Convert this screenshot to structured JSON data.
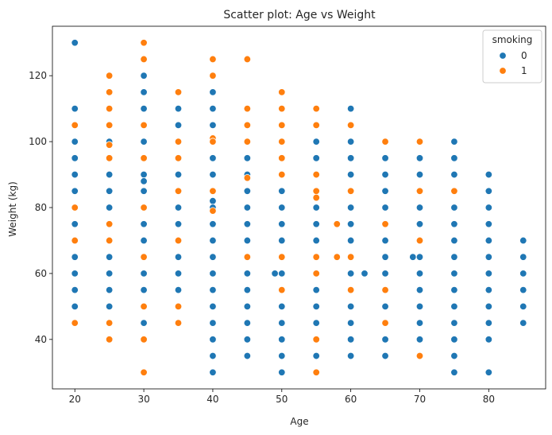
{
  "chart_data": {
    "type": "scatter",
    "title": "Scatter plot: Age vs Weight",
    "xlabel": "Age",
    "ylabel": "Weight (kg)",
    "xlim": [
      16.75,
      88.25
    ],
    "ylim": [
      25,
      135
    ],
    "xticks": [
      20,
      30,
      40,
      50,
      60,
      70,
      80
    ],
    "yticks": [
      40,
      60,
      80,
      100,
      120
    ],
    "grid": false,
    "legend": {
      "title": "smoking",
      "placement": "top-right",
      "entries": [
        "0",
        "1"
      ]
    },
    "colors": {
      "0": "#1f77b4",
      "1": "#ff7f0e"
    },
    "series": [
      {
        "name": "0",
        "points": [
          [
            20,
            130
          ],
          [
            20,
            110
          ],
          [
            20,
            100
          ],
          [
            20,
            95
          ],
          [
            20,
            90
          ],
          [
            20,
            85
          ],
          [
            20,
            75
          ],
          [
            20,
            65
          ],
          [
            20,
            60
          ],
          [
            20,
            55
          ],
          [
            20,
            50
          ],
          [
            25,
            100
          ],
          [
            25,
            90
          ],
          [
            25,
            85
          ],
          [
            25,
            80
          ],
          [
            25,
            65
          ],
          [
            25,
            60
          ],
          [
            25,
            55
          ],
          [
            25,
            50
          ],
          [
            30,
            120
          ],
          [
            30,
            115
          ],
          [
            30,
            110
          ],
          [
            30,
            100
          ],
          [
            30,
            90
          ],
          [
            30,
            88
          ],
          [
            30,
            85
          ],
          [
            30,
            75
          ],
          [
            30,
            70
          ],
          [
            30,
            60
          ],
          [
            30,
            55
          ],
          [
            30,
            45
          ],
          [
            35,
            110
          ],
          [
            35,
            105
          ],
          [
            35,
            90
          ],
          [
            35,
            80
          ],
          [
            35,
            75
          ],
          [
            35,
            65
          ],
          [
            35,
            60
          ],
          [
            35,
            55
          ],
          [
            35,
            50
          ],
          [
            40,
            115
          ],
          [
            40,
            110
          ],
          [
            40,
            105
          ],
          [
            40,
            100
          ],
          [
            40,
            95
          ],
          [
            40,
            90
          ],
          [
            40,
            82
          ],
          [
            40,
            80
          ],
          [
            40,
            75
          ],
          [
            40,
            70
          ],
          [
            40,
            65
          ],
          [
            40,
            60
          ],
          [
            40,
            55
          ],
          [
            40,
            50
          ],
          [
            40,
            45
          ],
          [
            40,
            40
          ],
          [
            40,
            35
          ],
          [
            40,
            30
          ],
          [
            45,
            95
          ],
          [
            45,
            90
          ],
          [
            45,
            85
          ],
          [
            45,
            80
          ],
          [
            45,
            75
          ],
          [
            45,
            70
          ],
          [
            45,
            60
          ],
          [
            45,
            55
          ],
          [
            45,
            50
          ],
          [
            45,
            45
          ],
          [
            45,
            40
          ],
          [
            45,
            35
          ],
          [
            49,
            60
          ],
          [
            50,
            85
          ],
          [
            50,
            80
          ],
          [
            50,
            75
          ],
          [
            50,
            70
          ],
          [
            50,
            60
          ],
          [
            50,
            55
          ],
          [
            50,
            50
          ],
          [
            50,
            45
          ],
          [
            50,
            40
          ],
          [
            50,
            35
          ],
          [
            50,
            30
          ],
          [
            55,
            100
          ],
          [
            55,
            95
          ],
          [
            55,
            90
          ],
          [
            55,
            80
          ],
          [
            55,
            75
          ],
          [
            55,
            70
          ],
          [
            55,
            55
          ],
          [
            55,
            50
          ],
          [
            55,
            45
          ],
          [
            55,
            40
          ],
          [
            55,
            35
          ],
          [
            60,
            110
          ],
          [
            60,
            100
          ],
          [
            60,
            95
          ],
          [
            60,
            90
          ],
          [
            60,
            80
          ],
          [
            60,
            75
          ],
          [
            60,
            70
          ],
          [
            60,
            60
          ],
          [
            60,
            50
          ],
          [
            60,
            45
          ],
          [
            60,
            40
          ],
          [
            60,
            35
          ],
          [
            62,
            60
          ],
          [
            65,
            95
          ],
          [
            65,
            90
          ],
          [
            65,
            85
          ],
          [
            65,
            80
          ],
          [
            65,
            70
          ],
          [
            65,
            65
          ],
          [
            65,
            60
          ],
          [
            65,
            50
          ],
          [
            65,
            40
          ],
          [
            65,
            35
          ],
          [
            69,
            65
          ],
          [
            70,
            95
          ],
          [
            70,
            90
          ],
          [
            70,
            80
          ],
          [
            70,
            75
          ],
          [
            70,
            65
          ],
          [
            70,
            60
          ],
          [
            70,
            55
          ],
          [
            70,
            50
          ],
          [
            70,
            45
          ],
          [
            70,
            40
          ],
          [
            75,
            100
          ],
          [
            75,
            95
          ],
          [
            75,
            90
          ],
          [
            75,
            80
          ],
          [
            75,
            75
          ],
          [
            75,
            70
          ],
          [
            75,
            65
          ],
          [
            75,
            60
          ],
          [
            75,
            55
          ],
          [
            75,
            50
          ],
          [
            75,
            45
          ],
          [
            75,
            40
          ],
          [
            75,
            35
          ],
          [
            75,
            30
          ],
          [
            80,
            90
          ],
          [
            80,
            85
          ],
          [
            80,
            80
          ],
          [
            80,
            75
          ],
          [
            80,
            70
          ],
          [
            80,
            65
          ],
          [
            80,
            60
          ],
          [
            80,
            55
          ],
          [
            80,
            50
          ],
          [
            80,
            45
          ],
          [
            80,
            40
          ],
          [
            80,
            30
          ],
          [
            85,
            70
          ],
          [
            85,
            65
          ],
          [
            85,
            60
          ],
          [
            85,
            55
          ],
          [
            85,
            50
          ],
          [
            85,
            45
          ]
        ]
      },
      {
        "name": "1",
        "points": [
          [
            20,
            105
          ],
          [
            20,
            80
          ],
          [
            20,
            70
          ],
          [
            20,
            45
          ],
          [
            25,
            120
          ],
          [
            25,
            115
          ],
          [
            25,
            110
          ],
          [
            25,
            105
          ],
          [
            25,
            99
          ],
          [
            25,
            95
          ],
          [
            25,
            75
          ],
          [
            25,
            70
          ],
          [
            25,
            45
          ],
          [
            25,
            40
          ],
          [
            30,
            130
          ],
          [
            30,
            125
          ],
          [
            30,
            105
          ],
          [
            30,
            95
          ],
          [
            30,
            80
          ],
          [
            30,
            65
          ],
          [
            30,
            50
          ],
          [
            30,
            40
          ],
          [
            30,
            30
          ],
          [
            35,
            115
          ],
          [
            35,
            100
          ],
          [
            35,
            95
          ],
          [
            35,
            85
          ],
          [
            35,
            70
          ],
          [
            35,
            50
          ],
          [
            35,
            45
          ],
          [
            40,
            125
          ],
          [
            40,
            120
          ],
          [
            40,
            101
          ],
          [
            40,
            100
          ],
          [
            40,
            85
          ],
          [
            40,
            79
          ],
          [
            45,
            125
          ],
          [
            45,
            110
          ],
          [
            45,
            105
          ],
          [
            45,
            100
          ],
          [
            45,
            89
          ],
          [
            45,
            65
          ],
          [
            50,
            115
          ],
          [
            50,
            110
          ],
          [
            50,
            105
          ],
          [
            50,
            100
          ],
          [
            50,
            95
          ],
          [
            50,
            90
          ],
          [
            50,
            65
          ],
          [
            50,
            55
          ],
          [
            55,
            110
          ],
          [
            55,
            105
          ],
          [
            55,
            90
          ],
          [
            55,
            85
          ],
          [
            55,
            83
          ],
          [
            55,
            65
          ],
          [
            55,
            60
          ],
          [
            55,
            40
          ],
          [
            55,
            30
          ],
          [
            58,
            75
          ],
          [
            58,
            65
          ],
          [
            60,
            105
          ],
          [
            60,
            85
          ],
          [
            60,
            65
          ],
          [
            60,
            55
          ],
          [
            65,
            100
          ],
          [
            65,
            75
          ],
          [
            65,
            55
          ],
          [
            65,
            45
          ],
          [
            70,
            100
          ],
          [
            70,
            85
          ],
          [
            70,
            70
          ],
          [
            70,
            35
          ],
          [
            75,
            85
          ]
        ]
      }
    ]
  }
}
